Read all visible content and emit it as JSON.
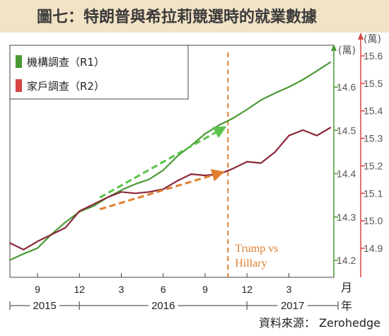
{
  "title": "圖七：特朗普與希拉莉競選時的就業數據",
  "colors": {
    "r1": "#4a9a35",
    "r2": "#8b2a3a",
    "vline": "#e07f2f",
    "arrow_green": "#5cc24a",
    "arrow_orange": "#e07f2f",
    "right_axis": "#d64545",
    "mid_axis": "#4a9a35"
  },
  "chart_data": {
    "type": "line",
    "x": [
      "2015-07",
      "2015-08",
      "2015-09",
      "2015-10",
      "2015-11",
      "2015-12",
      "2016-01",
      "2016-02",
      "2016-03",
      "2016-04",
      "2016-05",
      "2016-06",
      "2016-07",
      "2016-08",
      "2016-09",
      "2016-10",
      "2016-11",
      "2016-12",
      "2017-01",
      "2017-02",
      "2017-03",
      "2017-04",
      "2017-05",
      "2017-06"
    ],
    "series": [
      {
        "name": "機構調查（R1）",
        "axis": "mid",
        "values": [
          14.2,
          14.215,
          14.228,
          14.26,
          14.288,
          14.312,
          14.325,
          14.345,
          14.362,
          14.376,
          14.387,
          14.408,
          14.44,
          14.465,
          14.492,
          14.512,
          14.528,
          14.548,
          14.57,
          14.586,
          14.6,
          14.617,
          14.637,
          14.658
        ]
      },
      {
        "name": "家戶調查（R2）",
        "axis": "right",
        "values": [
          14.92,
          14.895,
          14.925,
          14.95,
          14.975,
          15.035,
          15.06,
          15.085,
          15.105,
          15.1,
          15.105,
          15.115,
          15.145,
          15.17,
          15.165,
          15.17,
          15.19,
          15.215,
          15.21,
          15.25,
          15.31,
          15.33,
          15.31,
          15.34
        ]
      }
    ],
    "x_ticks": [
      {
        "label": "9",
        "x": "2015-09"
      },
      {
        "label": "12",
        "x": "2015-12"
      },
      {
        "label": "3",
        "x": "2016-03"
      },
      {
        "label": "6",
        "x": "2016-06"
      },
      {
        "label": "9",
        "x": "2016-09"
      },
      {
        "label": "12",
        "x": "2016-12"
      },
      {
        "label": "3",
        "x": "2017-03"
      }
    ],
    "x_unit": "月",
    "mid_axis": {
      "unit": "(萬)",
      "ylim": [
        14.16,
        14.7
      ],
      "ticks": [
        "14.2",
        "14.3",
        "14.4",
        "14.5",
        "14.6"
      ]
    },
    "right_axis": {
      "unit": "(萬)",
      "ylim": [
        14.81,
        15.64
      ],
      "ticks": [
        "14.9",
        "15.0",
        "15.1",
        "15.2",
        "15.3",
        "15.4",
        "15.5",
        "15.6"
      ]
    },
    "years": [
      {
        "label": "2015",
        "from": "2015-07",
        "to": "2015-12"
      },
      {
        "label": "2016",
        "from": "2015-12",
        "to": "2016-12"
      },
      {
        "label": "2017",
        "from": "2016-12",
        "to": "2017-06"
      }
    ],
    "election_line_x": "2016-10-20",
    "annotation": [
      "Trump vs",
      "Hillary"
    ],
    "trend_arrows": [
      {
        "series": "機構調查（R1）",
        "from": [
          "2016-01-15",
          14.345
        ],
        "to": [
          "2016-10-10",
          14.505
        ]
      },
      {
        "series": "家戶調查（R2）",
        "from": [
          "2016-01-15",
          15.042
        ],
        "to": [
          "2016-10-05",
          15.175
        ]
      }
    ],
    "legend": "top-left",
    "grid": false
  },
  "source": "資料來源： Zerohedge"
}
